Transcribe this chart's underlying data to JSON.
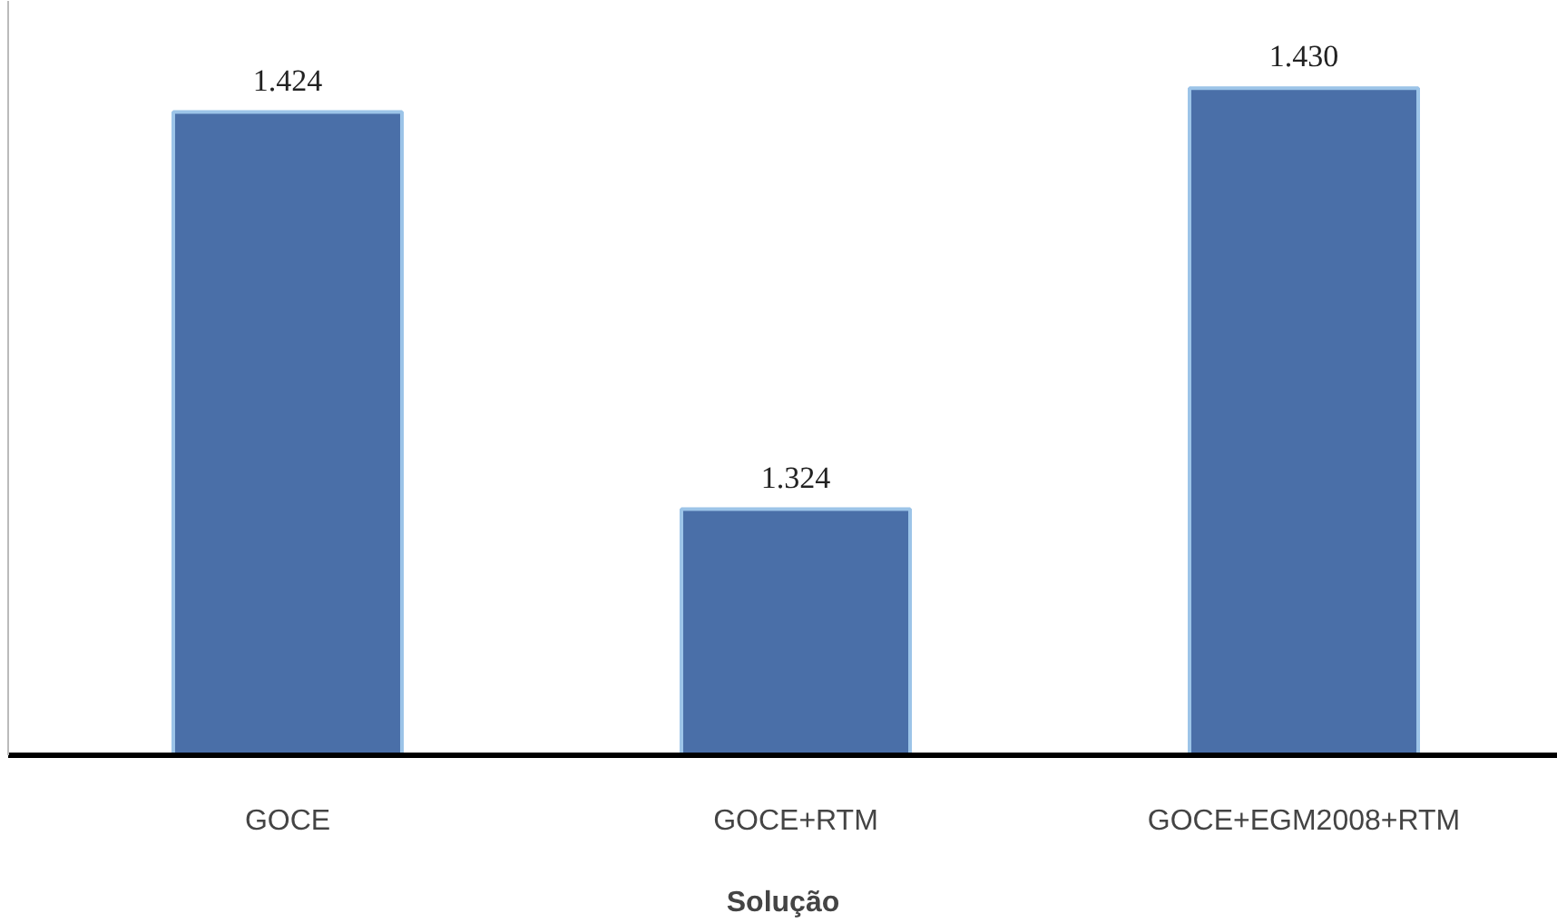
{
  "chart_data": {
    "type": "bar",
    "xlabel": "Solução",
    "categories": [
      "GOCE",
      "GOCE+RTM",
      "GOCE+EGM2008+RTM"
    ],
    "values": [
      1.424,
      1.324,
      1.43
    ],
    "value_labels": [
      "1.424",
      "1.324",
      "1.430"
    ],
    "color": "#4a6fa8",
    "ylim": [
      1.262,
      1.452
    ],
    "tick_labels": "x",
    "grid": false
  }
}
